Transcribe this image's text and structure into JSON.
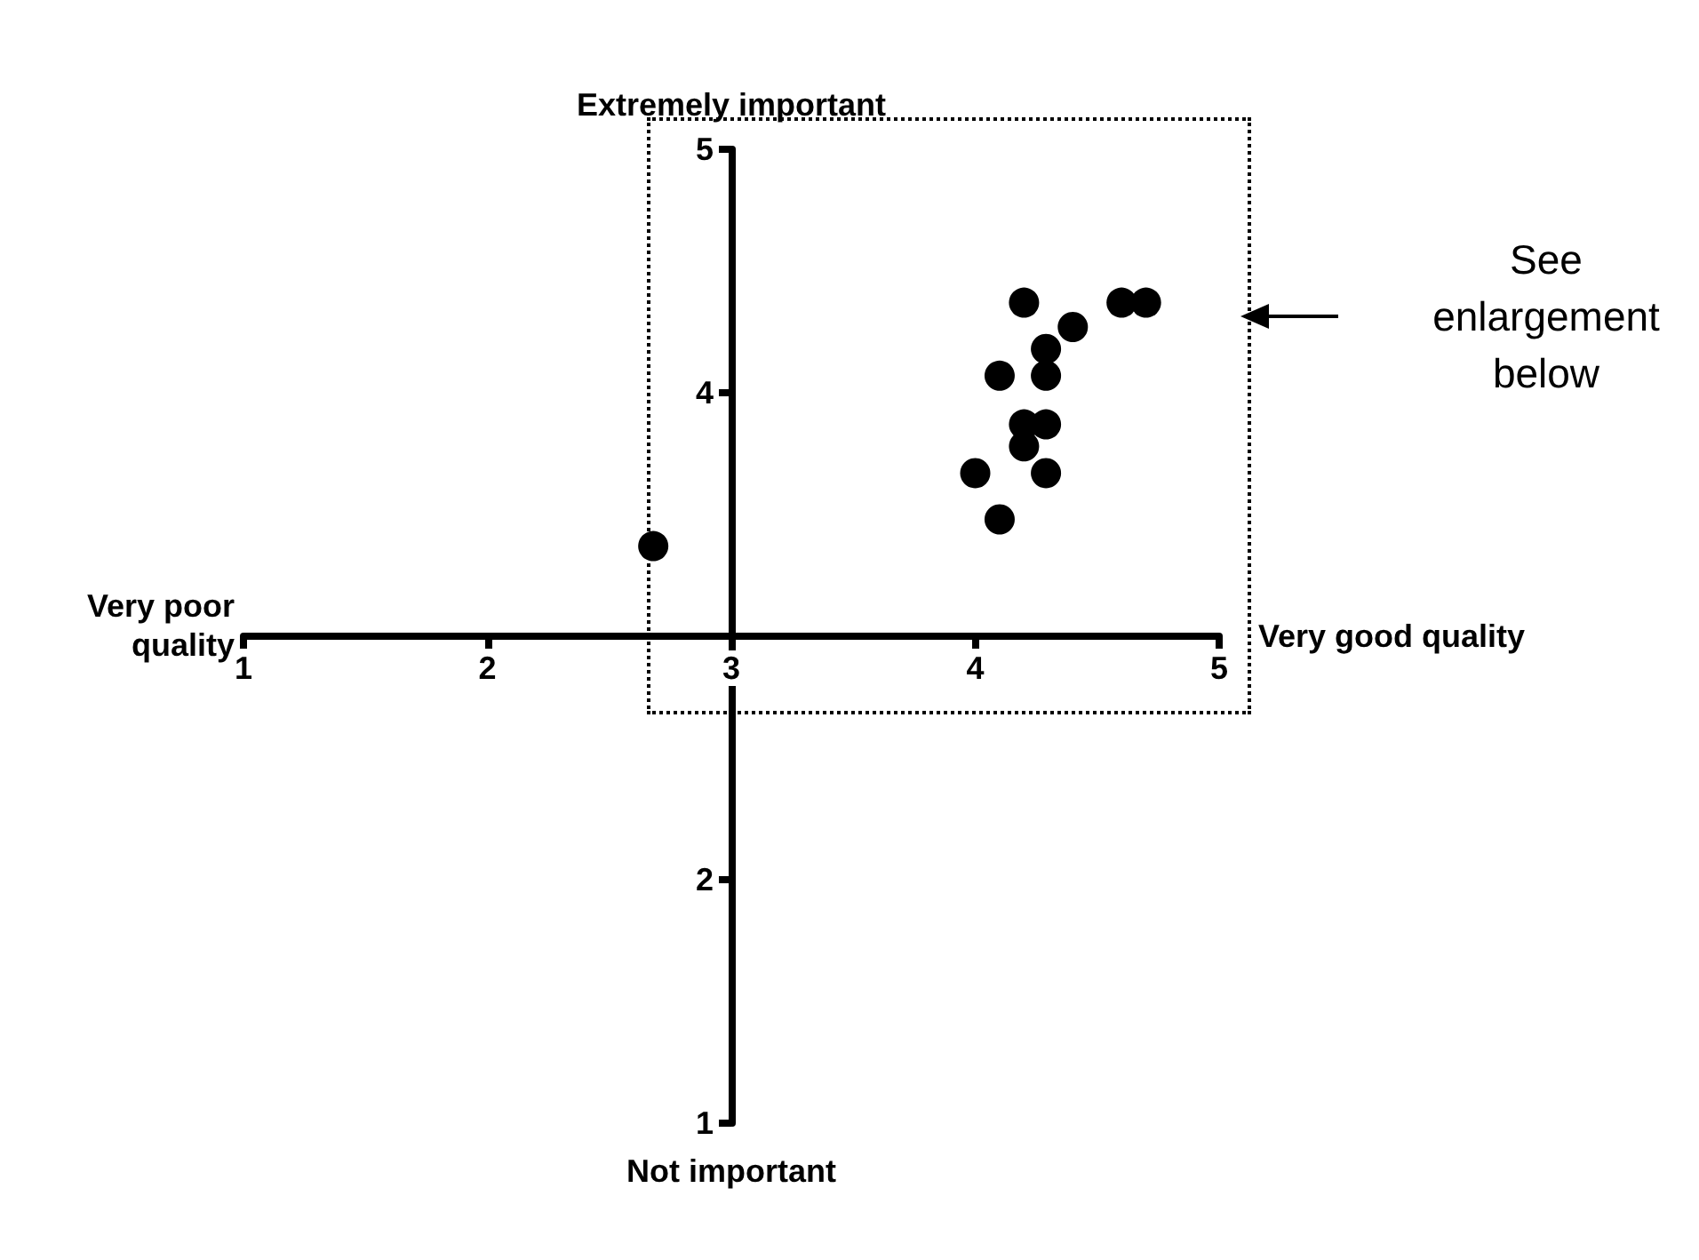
{
  "chart_data": {
    "type": "scatter",
    "xlabel": "Very good quality",
    "ylabel": "Extremely important",
    "annotations": [
      "Very poor quality",
      "Not important",
      "See enlargement below"
    ],
    "x": [
      2.68,
      4.2,
      4.6,
      4.7,
      4.4,
      4.29,
      4.1,
      4.29,
      4.2,
      4.29,
      4.2,
      4.0,
      4.29,
      4.1
    ],
    "values": [
      3.37,
      4.37,
      4.37,
      4.37,
      4.27,
      4.18,
      4.07,
      4.07,
      3.87,
      3.87,
      3.78,
      3.67,
      3.67,
      3.48
    ],
    "color": "#000000",
    "marker": "circle",
    "xlim": [
      1,
      5
    ],
    "ylim": [
      1,
      5
    ],
    "xticks": [
      1,
      2,
      3,
      4,
      5
    ],
    "yticks": [
      1,
      2,
      4,
      5
    ]
  }
}
